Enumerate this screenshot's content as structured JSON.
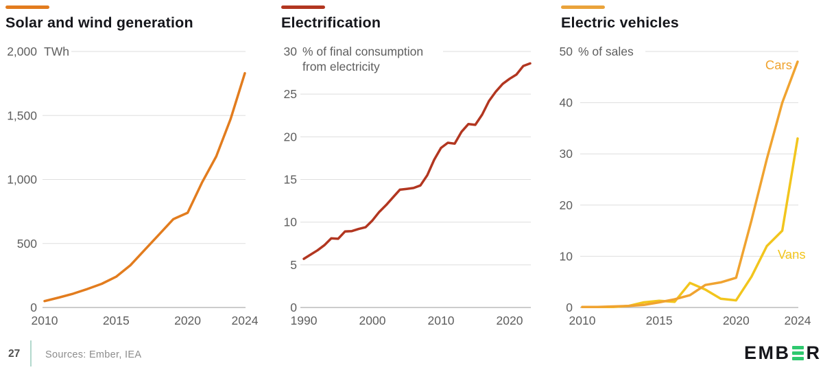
{
  "page": {
    "background": "#FFFFFF",
    "footer": {
      "page_number": "27",
      "sources": "Sources: Ember, IEA",
      "logo_text_left": "EMB",
      "logo_text_right": "R"
    }
  },
  "colors": {
    "background": "#FFFFFF",
    "title_text": "#15161B",
    "axis_text": "#5E5E5E",
    "gridline": "#DEDEDE",
    "axis_line": "#ADADAD",
    "footer_divider": "#B2D8CD",
    "footer_text": "#8C8C8C",
    "page_number_text": "#4F4F4F",
    "logo_green": "#2FC96F"
  },
  "chart_data": [
    {
      "type": "line",
      "title": "Solar and wind generation",
      "accent_color": "#E27C1E",
      "unit_lines": [
        "TWh"
      ],
      "xlim": [
        2010,
        2024
      ],
      "ylim": [
        0,
        2000
      ],
      "grid": true,
      "legend_position": "none",
      "yticks": [
        {
          "v": 0,
          "label": "0"
        },
        {
          "v": 500,
          "label": "500"
        },
        {
          "v": 1000,
          "label": "1,000"
        },
        {
          "v": 1500,
          "label": "1,500"
        },
        {
          "v": 2000,
          "label": "2,000"
        }
      ],
      "xticks": [
        {
          "v": 2010,
          "label": "2010"
        },
        {
          "v": 2015,
          "label": "2015"
        },
        {
          "v": 2020,
          "label": "2020"
        },
        {
          "v": 2024,
          "label": "2024"
        }
      ],
      "x": [
        2010,
        2011,
        2012,
        2013,
        2014,
        2015,
        2016,
        2017,
        2018,
        2019,
        2020,
        2021,
        2022,
        2023,
        2024
      ],
      "series": [
        {
          "name": "Solar and wind",
          "color": "#E27C1E",
          "values": [
            50,
            78,
            108,
            145,
            185,
            240,
            330,
            450,
            570,
            690,
            740,
            975,
            1180,
            1470,
            1830
          ]
        }
      ]
    },
    {
      "type": "line",
      "title": "Electrification",
      "accent_color": "#B23620",
      "unit_lines": [
        "% of final consumption",
        "from electricity"
      ],
      "xlim": [
        1990,
        2023
      ],
      "ylim": [
        0,
        30
      ],
      "grid": true,
      "legend_position": "none",
      "yticks": [
        {
          "v": 0,
          "label": "0"
        },
        {
          "v": 5,
          "label": "5"
        },
        {
          "v": 10,
          "label": "10"
        },
        {
          "v": 15,
          "label": "15"
        },
        {
          "v": 20,
          "label": "20"
        },
        {
          "v": 25,
          "label": "25"
        },
        {
          "v": 30,
          "label": "30"
        }
      ],
      "xticks": [
        {
          "v": 1990,
          "label": "1990"
        },
        {
          "v": 2000,
          "label": "2000"
        },
        {
          "v": 2010,
          "label": "2010"
        },
        {
          "v": 2020,
          "label": "2020"
        }
      ],
      "x": [
        1990,
        1991,
        1992,
        1993,
        1994,
        1995,
        1996,
        1997,
        1998,
        1999,
        2000,
        2001,
        2002,
        2003,
        2004,
        2005,
        2006,
        2007,
        2008,
        2009,
        2010,
        2011,
        2012,
        2013,
        2014,
        2015,
        2016,
        2017,
        2018,
        2019,
        2020,
        2021,
        2022,
        2023
      ],
      "series": [
        {
          "name": "Electrification",
          "color": "#B23620",
          "values": [
            5.7,
            6.2,
            6.7,
            7.3,
            8.1,
            8.05,
            8.9,
            8.95,
            9.2,
            9.4,
            10.2,
            11.2,
            12.0,
            12.9,
            13.8,
            13.9,
            14.0,
            14.3,
            15.5,
            17.3,
            18.7,
            19.3,
            19.2,
            20.6,
            21.5,
            21.4,
            22.6,
            24.2,
            25.3,
            26.2,
            26.8,
            27.3,
            28.3,
            28.6
          ]
        }
      ]
    },
    {
      "type": "line",
      "title": "Electric vehicles",
      "accent_color": "#EAA33B",
      "unit_lines": [
        "% of sales"
      ],
      "xlim": [
        2010,
        2024
      ],
      "ylim": [
        0,
        50
      ],
      "grid": true,
      "legend_position": "inline-labels",
      "yticks": [
        {
          "v": 0,
          "label": "0"
        },
        {
          "v": 10,
          "label": "10"
        },
        {
          "v": 20,
          "label": "20"
        },
        {
          "v": 30,
          "label": "30"
        },
        {
          "v": 40,
          "label": "40"
        },
        {
          "v": 50,
          "label": "50"
        }
      ],
      "xticks": [
        {
          "v": 2010,
          "label": "2010"
        },
        {
          "v": 2015,
          "label": "2015"
        },
        {
          "v": 2020,
          "label": "2020"
        },
        {
          "v": 2024,
          "label": "2024"
        }
      ],
      "x": [
        2010,
        2011,
        2012,
        2013,
        2014,
        2015,
        2016,
        2017,
        2018,
        2019,
        2020,
        2021,
        2022,
        2023,
        2024
      ],
      "series": [
        {
          "name": "Vans",
          "color": "#F2C51D",
          "values": [
            0.1,
            0.1,
            0.1,
            0.3,
            1.0,
            1.3,
            1.1,
            4.8,
            3.5,
            1.7,
            1.4,
            6.0,
            12.0,
            15.0,
            33.0
          ],
          "label": {
            "text": "Vans",
            "x": 2022.7,
            "y": 10.3
          }
        },
        {
          "name": "Cars",
          "color": "#F0A330",
          "values": [
            0.1,
            0.1,
            0.2,
            0.3,
            0.5,
            1.0,
            1.6,
            2.4,
            4.4,
            4.9,
            5.8,
            17.0,
            29.0,
            40.0,
            48.0
          ],
          "label": {
            "text": "Cars",
            "x": 2021.9,
            "y": 47.3
          }
        }
      ]
    }
  ]
}
